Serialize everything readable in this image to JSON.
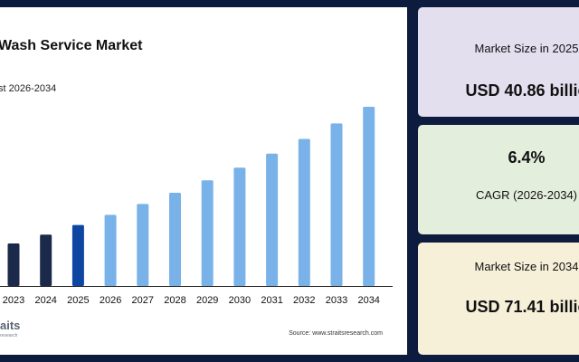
{
  "chart": {
    "title": "Wash Service Market",
    "subtitle": "st 2026-2034",
    "source": "Source: www.straitsresearch.com"
  },
  "logo": {
    "main": "aits",
    "sub": "research"
  },
  "stats": [
    {
      "label": "Market Size in 2025",
      "value": "USD 40.86 billio"
    },
    {
      "value": "6.4%",
      "label": "CAGR (2026-2034)"
    },
    {
      "label": "Market Size in 2034",
      "value": "USD 71.41 billio"
    }
  ],
  "colors": {
    "historical": "#1b2a4a",
    "base_year": "#0d47a1",
    "forecast": "#79b2e8",
    "background": "#0d1b3e"
  },
  "chart_data": {
    "type": "bar",
    "title": "Wash Service Market",
    "subtitle": "st 2026-2034",
    "categories": [
      "2023",
      "2024",
      "2025",
      "2026",
      "2027",
      "2028",
      "2029",
      "2030",
      "2031",
      "2032",
      "2033",
      "2034"
    ],
    "values": [
      36.1,
      38.4,
      40.86,
      43.5,
      46.3,
      49.2,
      52.4,
      55.7,
      59.3,
      63.1,
      67.1,
      71.41
    ],
    "series_roles": [
      "historical",
      "historical",
      "base",
      "forecast",
      "forecast",
      "forecast",
      "forecast",
      "forecast",
      "forecast",
      "forecast",
      "forecast",
      "forecast"
    ],
    "grid": false,
    "legend": "none"
  }
}
